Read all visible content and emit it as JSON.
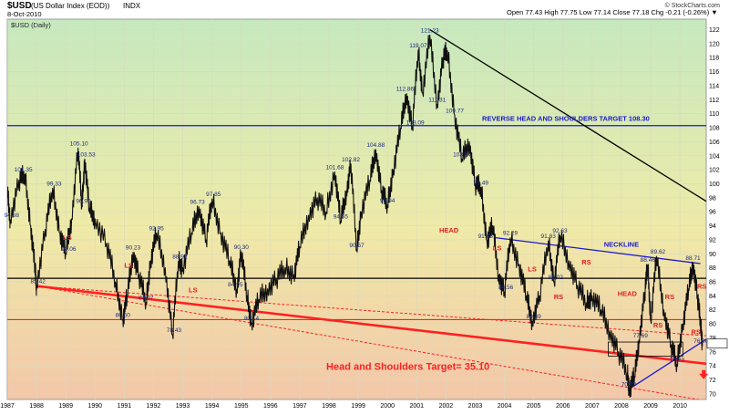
{
  "header": {
    "symbol": "$USD",
    "name": "(US Dollar Index (EOD))",
    "exchange": "INDX",
    "date": "8-Oct-2010",
    "ohlc": "Open 77.43   High 77.75   Low 77.14   Close 77.18   Chg -0.21 (-0.26%) ▼",
    "source": "© StockCharts.com",
    "legend": "$USD (Daily)"
  },
  "colors": {
    "price": "#111111",
    "peak_label": "#1a2b7a",
    "pattern_label": "#e02020",
    "blue_line": "#1a1acd",
    "red_line": "#ff2020",
    "black_line": "#000000",
    "bg_top": "#c6e9bf",
    "bg_mid": "#efeaa8",
    "bg_bottom": "#f3c7a9"
  },
  "chart_data": {
    "type": "line",
    "title": "$USD (US Dollar Index (EOD)) INDX",
    "series": [
      {
        "name": "$USD (Daily)",
        "points": [
          [
            1987.0,
            99.0
          ],
          [
            1987.1,
            94.88
          ],
          [
            1987.4,
            100.5
          ],
          [
            1987.6,
            101.35
          ],
          [
            1987.8,
            94.0
          ],
          [
            1987.95,
            87.8
          ],
          [
            1988.0,
            85.42
          ],
          [
            1988.3,
            93.5
          ],
          [
            1988.55,
            99.33
          ],
          [
            1988.8,
            93.0
          ],
          [
            1989.0,
            90.06
          ],
          [
            1989.2,
            95.0
          ],
          [
            1989.42,
            105.1
          ],
          [
            1989.55,
            96.9
          ],
          [
            1989.65,
            103.53
          ],
          [
            1989.8,
            96.5
          ],
          [
            1990.0,
            95.0
          ],
          [
            1990.4,
            91.5
          ],
          [
            1990.7,
            86.0
          ],
          [
            1990.95,
            80.6
          ],
          [
            1991.1,
            84.0
          ],
          [
            1991.3,
            90.23
          ],
          [
            1991.5,
            87.0
          ],
          [
            1991.75,
            83.07
          ],
          [
            1991.9,
            89.0
          ],
          [
            1992.1,
            92.95
          ],
          [
            1992.4,
            88.0
          ],
          [
            1992.65,
            78.43
          ],
          [
            1992.85,
            88.92
          ],
          [
            1993.0,
            88.0
          ],
          [
            1993.3,
            93.0
          ],
          [
            1993.55,
            96.73
          ],
          [
            1993.8,
            92.0
          ],
          [
            1994.0,
            97.85
          ],
          [
            1994.3,
            93.0
          ],
          [
            1994.6,
            89.0
          ],
          [
            1994.85,
            84.95
          ],
          [
            1995.0,
            90.3
          ],
          [
            1995.2,
            84.0
          ],
          [
            1995.35,
            80.14
          ],
          [
            1995.6,
            83.5
          ],
          [
            1995.9,
            85.0
          ],
          [
            1996.2,
            86.5
          ],
          [
            1996.5,
            88.0
          ],
          [
            1996.8,
            87.0
          ],
          [
            1997.0,
            91.0
          ],
          [
            1997.3,
            95.5
          ],
          [
            1997.6,
            98.0
          ],
          [
            1997.9,
            96.0
          ],
          [
            1998.2,
            101.68
          ],
          [
            1998.4,
            94.65
          ],
          [
            1998.6,
            99.0
          ],
          [
            1998.75,
            102.82
          ],
          [
            1998.95,
            90.57
          ],
          [
            1999.1,
            96.0
          ],
          [
            1999.4,
            100.5
          ],
          [
            1999.6,
            104.88
          ],
          [
            1999.8,
            99.0
          ],
          [
            2000.0,
            96.94
          ],
          [
            2000.2,
            102.0
          ],
          [
            2000.45,
            108.0
          ],
          [
            2000.65,
            112.86
          ],
          [
            2000.85,
            108.09
          ],
          [
            2001.05,
            119.07
          ],
          [
            2001.2,
            113.0
          ],
          [
            2001.45,
            121.23
          ],
          [
            2001.7,
            111.31
          ],
          [
            2001.9,
            118.0
          ],
          [
            2002.05,
            119.0
          ],
          [
            2002.3,
            109.77
          ],
          [
            2002.55,
            103.54
          ],
          [
            2002.8,
            106.0
          ],
          [
            2003.0,
            100.0
          ],
          [
            2003.2,
            99.49
          ],
          [
            2003.4,
            91.88
          ],
          [
            2003.6,
            94.0
          ],
          [
            2003.8,
            87.0
          ],
          [
            2004.0,
            84.56
          ],
          [
            2004.2,
            92.29
          ],
          [
            2004.5,
            88.5
          ],
          [
            2004.75,
            84.0
          ],
          [
            2004.95,
            80.39
          ],
          [
            2005.2,
            84.0
          ],
          [
            2005.5,
            91.83
          ],
          [
            2005.7,
            86.02
          ],
          [
            2005.9,
            92.63
          ],
          [
            2006.2,
            89.0
          ],
          [
            2006.5,
            85.5
          ],
          [
            2006.8,
            83.0
          ],
          [
            2007.0,
            84.0
          ],
          [
            2007.3,
            82.0
          ],
          [
            2007.6,
            79.0
          ],
          [
            2007.9,
            76.0
          ],
          [
            2008.2,
            73.0
          ],
          [
            2008.27,
            70.7
          ],
          [
            2008.45,
            72.5
          ],
          [
            2008.6,
            77.69
          ],
          [
            2008.8,
            84.5
          ],
          [
            2008.9,
            88.46
          ],
          [
            2009.0,
            80.5
          ],
          [
            2009.2,
            89.62
          ],
          [
            2009.45,
            82.0
          ],
          [
            2009.7,
            77.0
          ],
          [
            2009.9,
            74.23
          ],
          [
            2010.1,
            80.0
          ],
          [
            2010.3,
            85.0
          ],
          [
            2010.45,
            88.71
          ],
          [
            2010.6,
            84.0
          ],
          [
            2010.72,
            79.5
          ],
          [
            2010.77,
            77.18
          ]
        ]
      }
    ],
    "x_ticks": [
      "1987",
      "1988",
      "1989",
      "1990",
      "1991",
      "1992",
      "1993",
      "1994",
      "1995",
      "1996",
      "1997",
      "1998",
      "1999",
      "2000",
      "2001",
      "2002",
      "2003",
      "2004",
      "2005",
      "2006",
      "2007",
      "2008",
      "2009",
      "2010"
    ],
    "y_ticks": [
      70,
      72,
      74,
      76,
      78,
      80,
      82,
      84,
      86,
      88,
      90,
      92,
      94,
      96,
      98,
      100,
      102,
      104,
      106,
      108,
      110,
      112,
      114,
      116,
      118,
      120,
      122
    ],
    "xlim": [
      1987.0,
      2010.9
    ],
    "ylim": [
      69.2,
      123.5
    ],
    "axis_side": "right",
    "peak_labels": [
      {
        "text": "101.35",
        "x": 1987.55,
        "y": 101.35
      },
      {
        "text": "94.88",
        "x": 1987.15,
        "y": 94.88
      },
      {
        "text": "85.42",
        "x": 1988.05,
        "y": 85.42
      },
      {
        "text": "99.33",
        "x": 1988.6,
        "y": 99.33
      },
      {
        "text": "90.06",
        "x": 1989.1,
        "y": 90.06
      },
      {
        "text": "105.10",
        "x": 1989.45,
        "y": 105.1
      },
      {
        "text": "103.53",
        "x": 1989.7,
        "y": 103.53
      },
      {
        "text": "96.90",
        "x": 1989.6,
        "y": 96.9
      },
      {
        "text": "80.60",
        "x": 1990.95,
        "y": 80.6
      },
      {
        "text": "90.23",
        "x": 1991.3,
        "y": 90.23
      },
      {
        "text": "83.07",
        "x": 1991.75,
        "y": 83.07
      },
      {
        "text": "92.95",
        "x": 1992.1,
        "y": 92.95
      },
      {
        "text": "78.43",
        "x": 1992.7,
        "y": 78.43
      },
      {
        "text": "88.92",
        "x": 1992.9,
        "y": 88.92
      },
      {
        "text": "96.73",
        "x": 1993.5,
        "y": 96.73
      },
      {
        "text": "97.85",
        "x": 1994.05,
        "y": 97.85
      },
      {
        "text": "90.30",
        "x": 1995.0,
        "y": 90.3
      },
      {
        "text": "84.95",
        "x": 1994.8,
        "y": 84.95
      },
      {
        "text": "80.14",
        "x": 1995.35,
        "y": 80.14
      },
      {
        "text": "101.68",
        "x": 1998.2,
        "y": 101.68
      },
      {
        "text": "94.65",
        "x": 1998.4,
        "y": 94.65
      },
      {
        "text": "102.82",
        "x": 1998.75,
        "y": 102.82
      },
      {
        "text": "90.57",
        "x": 1998.95,
        "y": 90.57
      },
      {
        "text": "104.88",
        "x": 1999.6,
        "y": 104.88
      },
      {
        "text": "96.94",
        "x": 2000.0,
        "y": 96.94
      },
      {
        "text": "112.86",
        "x": 2000.6,
        "y": 112.86
      },
      {
        "text": "108.09",
        "x": 2000.95,
        "y": 108.09
      },
      {
        "text": "119.07",
        "x": 2001.05,
        "y": 119.07
      },
      {
        "text": "121.23",
        "x": 2001.45,
        "y": 121.23
      },
      {
        "text": "111.31",
        "x": 2001.7,
        "y": 111.31
      },
      {
        "text": "109.77",
        "x": 2002.3,
        "y": 109.77
      },
      {
        "text": "103.54",
        "x": 2002.55,
        "y": 103.54
      },
      {
        "text": "99.49",
        "x": 2003.2,
        "y": 99.49
      },
      {
        "text": "91.88",
        "x": 2003.35,
        "y": 91.88
      },
      {
        "text": "92.29",
        "x": 2004.2,
        "y": 92.29
      },
      {
        "text": "84.56",
        "x": 2004.05,
        "y": 84.56
      },
      {
        "text": "80.39",
        "x": 2005.0,
        "y": 80.39
      },
      {
        "text": "91.83",
        "x": 2005.5,
        "y": 91.83
      },
      {
        "text": "86.02",
        "x": 2005.75,
        "y": 86.02
      },
      {
        "text": "92.63",
        "x": 2005.9,
        "y": 92.63
      },
      {
        "text": "88.46",
        "x": 2008.9,
        "y": 88.46
      },
      {
        "text": "89.62",
        "x": 2009.25,
        "y": 89.62
      },
      {
        "text": "77.69",
        "x": 2008.65,
        "y": 77.69
      },
      {
        "text": "74.23",
        "x": 2009.9,
        "y": 74.23
      },
      {
        "text": "70.70",
        "x": 2008.25,
        "y": 70.7
      },
      {
        "text": "88.71",
        "x": 2010.45,
        "y": 88.71
      },
      {
        "text": "76.90",
        "x": 2010.72,
        "y": 76.9
      }
    ],
    "pattern_labels": [
      {
        "text": "LS",
        "x": 1989.05,
        "y": 92.0
      },
      {
        "text": "LS",
        "x": 1991.15,
        "y": 88.0
      },
      {
        "text": "LS",
        "x": 1993.35,
        "y": 84.5
      },
      {
        "text": "HEAD",
        "x": 2002.1,
        "y": 93.0
      },
      {
        "text": "LS",
        "x": 2003.75,
        "y": 90.5
      },
      {
        "text": "LS",
        "x": 2004.95,
        "y": 87.5
      },
      {
        "text": "RS",
        "x": 2005.85,
        "y": 83.5
      },
      {
        "text": "RS",
        "x": 2006.8,
        "y": 88.5
      },
      {
        "text": "HEAD",
        "x": 2008.2,
        "y": 84.0
      },
      {
        "text": "RS",
        "x": 2009.65,
        "y": 83.5
      },
      {
        "text": "RS",
        "x": 2010.75,
        "y": 85.0
      },
      {
        "text": "RS",
        "x": 2009.25,
        "y": 79.5
      },
      {
        "text": "RS",
        "x": 2010.55,
        "y": 78.5
      }
    ],
    "annotations": [
      {
        "text": "REVERSE HEAD AND SHOULDERS TARGET 108.30",
        "x": 2006.1,
        "y": 109.0,
        "color": "blue"
      },
      {
        "text": "NECKLINE",
        "x": 2008.0,
        "y": 91.0,
        "color": "blue"
      },
      {
        "text": "Head and Shoulders Target= 35.10",
        "x": 2000.7,
        "y": 73.4,
        "color": "red"
      }
    ],
    "lines": [
      {
        "name": "reverse-target-line",
        "y": 108.3,
        "color": "blue"
      },
      {
        "name": "support-line",
        "y": 86.5,
        "color": "black"
      },
      {
        "name": "red-horizontal-line",
        "y": 80.6,
        "color": "red"
      },
      {
        "name": "downtrend-line",
        "from": [
          2001.45,
          122.0
        ],
        "to": [
          2010.9,
          97.5
        ],
        "color": "black"
      },
      {
        "name": "neckline",
        "from": [
          2003.7,
          92.3
        ],
        "to": [
          2010.7,
          88.6
        ],
        "color": "blue"
      },
      {
        "name": "main-trendline",
        "from": [
          1988.0,
          85.4
        ],
        "to": [
          2010.9,
          74.3
        ],
        "color": "red"
      },
      {
        "name": "upper-dashed-trendline",
        "from": [
          1988.0,
          85.4
        ],
        "to": [
          2010.9,
          78.3
        ],
        "color": "red"
      },
      {
        "name": "lower-dashed-trendline",
        "from": [
          1988.0,
          85.4
        ],
        "to": [
          2010.9,
          69.0
        ],
        "color": "red"
      },
      {
        "name": "blue-uptrend-line",
        "from": [
          2008.27,
          70.7
        ],
        "to": [
          2010.9,
          77.8
        ],
        "color": "blue"
      }
    ]
  }
}
